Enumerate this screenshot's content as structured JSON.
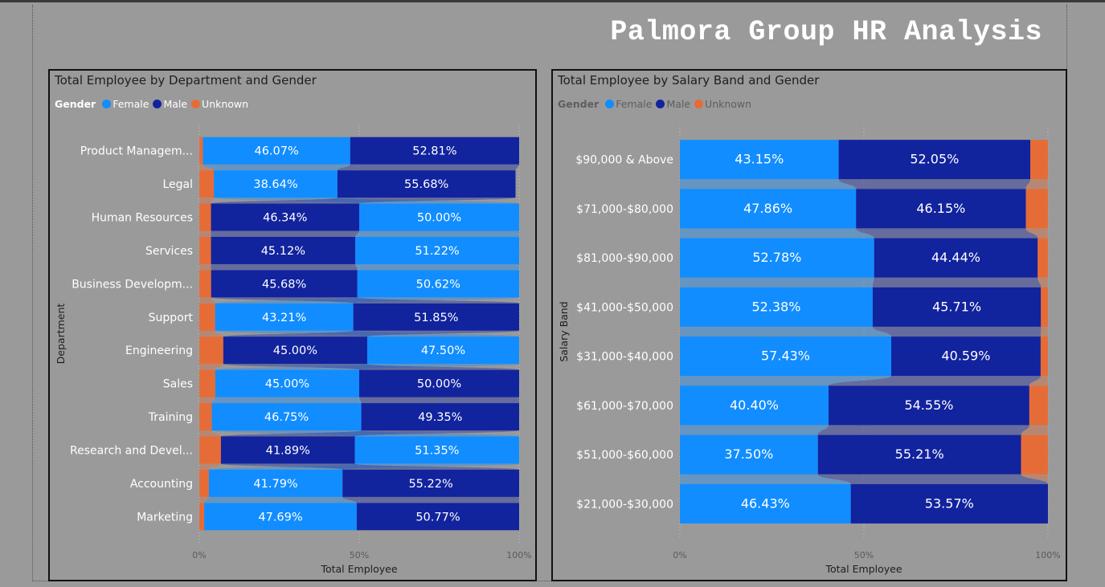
{
  "page": {
    "title": "Palmora Group HR Analysis"
  },
  "colors": {
    "Female": "#118dff",
    "Male": "#12239e",
    "Unknown": "#e66c37"
  },
  "chart_data": [
    {
      "type": "bar",
      "subtype": "100% stacked ribbon (horizontal)",
      "title": "Total Employee by Department and Gender",
      "xlabel": "Total Employee",
      "ylabel": "Department",
      "xlim": [
        0,
        100
      ],
      "xticks": [
        "0%",
        "50%",
        "100%"
      ],
      "legend": {
        "title": "Gender",
        "entries": [
          "Female",
          "Male",
          "Unknown"
        ],
        "position": "top-left"
      },
      "categories": [
        "Product Managem...",
        "Legal",
        "Human Resources",
        "Services",
        "Business Developm...",
        "Support",
        "Engineering",
        "Sales",
        "Training",
        "Research and Devel...",
        "Accounting",
        "Marketing"
      ],
      "series": [
        {
          "name": "Unknown",
          "values": [
            1.12,
            4.55,
            3.66,
            3.66,
            3.7,
            4.94,
            7.5,
            5.0,
            3.9,
            6.76,
            2.99,
            1.54
          ]
        },
        {
          "name": "Female",
          "values": [
            46.07,
            38.64,
            50.0,
            51.22,
            50.62,
            43.21,
            47.5,
            45.0,
            46.75,
            51.35,
            41.79,
            47.69
          ]
        },
        {
          "name": "Male",
          "values": [
            52.81,
            55.68,
            46.34,
            45.12,
            45.68,
            51.85,
            45.0,
            50.0,
            49.35,
            41.89,
            55.22,
            50.77
          ]
        }
      ],
      "stack_order": [
        [
          "Unknown",
          "Female",
          "Male"
        ],
        [
          "Unknown",
          "Female",
          "Male"
        ],
        [
          "Unknown",
          "Male",
          "Female"
        ],
        [
          "Unknown",
          "Male",
          "Female"
        ],
        [
          "Unknown",
          "Male",
          "Female"
        ],
        [
          "Unknown",
          "Female",
          "Male"
        ],
        [
          "Unknown",
          "Male",
          "Female"
        ],
        [
          "Unknown",
          "Female",
          "Male"
        ],
        [
          "Unknown",
          "Female",
          "Male"
        ],
        [
          "Unknown",
          "Male",
          "Female"
        ],
        [
          "Unknown",
          "Female",
          "Male"
        ],
        [
          "Unknown",
          "Female",
          "Male"
        ]
      ],
      "data_labels": [
        [
          "46.07%",
          "52.81%"
        ],
        [
          "38.64%",
          "55.68%"
        ],
        [
          "46.34%",
          "50.00%"
        ],
        [
          "45.12%",
          "51.22%"
        ],
        [
          "45.68%",
          "50.62%"
        ],
        [
          "43.21%",
          "51.85%"
        ],
        [
          "45.00%",
          "47.50%"
        ],
        [
          "45.00%",
          "50.00%"
        ],
        [
          "46.75%",
          "49.35%"
        ],
        [
          "41.89%",
          "51.35%"
        ],
        [
          "41.79%",
          "55.22%"
        ],
        [
          "47.69%",
          "50.77%"
        ]
      ],
      "grid": true
    },
    {
      "type": "bar",
      "subtype": "100% stacked ribbon (horizontal)",
      "title": "Total Employee by Salary Band and Gender",
      "xlabel": "Total Employee",
      "ylabel": "Salary Band",
      "xlim": [
        0,
        100
      ],
      "xticks": [
        "0%",
        "50%",
        "100%"
      ],
      "legend": {
        "title": "Gender",
        "entries": [
          "Female",
          "Male",
          "Unknown"
        ],
        "position": "top-left"
      },
      "categories": [
        "$90,000 & Above",
        "$71,000-$80,000",
        "$81,000-$90,000",
        "$41,000-$50,000",
        "$31,000-$40,000",
        "$61,000-$70,000",
        "$51,000-$60,000",
        "$21,000-$30,000"
      ],
      "series": [
        {
          "name": "Female",
          "values": [
            43.15,
            47.86,
            52.78,
            52.38,
            57.43,
            40.4,
            37.5,
            46.43
          ]
        },
        {
          "name": "Male",
          "values": [
            52.05,
            46.15,
            44.44,
            45.71,
            40.59,
            54.55,
            55.21,
            53.57
          ]
        },
        {
          "name": "Unknown",
          "values": [
            4.8,
            5.99,
            2.78,
            1.91,
            1.98,
            5.05,
            7.29,
            0.0
          ]
        }
      ],
      "stack_order": [
        [
          "Female",
          "Male",
          "Unknown"
        ],
        [
          "Female",
          "Male",
          "Unknown"
        ],
        [
          "Female",
          "Male",
          "Unknown"
        ],
        [
          "Female",
          "Male",
          "Unknown"
        ],
        [
          "Female",
          "Male",
          "Unknown"
        ],
        [
          "Female",
          "Male",
          "Unknown"
        ],
        [
          "Female",
          "Male",
          "Unknown"
        ],
        [
          "Female",
          "Male",
          "Unknown"
        ]
      ],
      "data_labels": [
        [
          "43.15%",
          "52.05%"
        ],
        [
          "47.86%",
          "46.15%"
        ],
        [
          "52.78%",
          "44.44%"
        ],
        [
          "52.38%",
          "45.71%"
        ],
        [
          "57.43%",
          "40.59%"
        ],
        [
          "40.40%",
          "54.55%"
        ],
        [
          "37.50%",
          "55.21%"
        ],
        [
          "46.43%",
          "53.57%"
        ]
      ],
      "grid": true
    }
  ]
}
